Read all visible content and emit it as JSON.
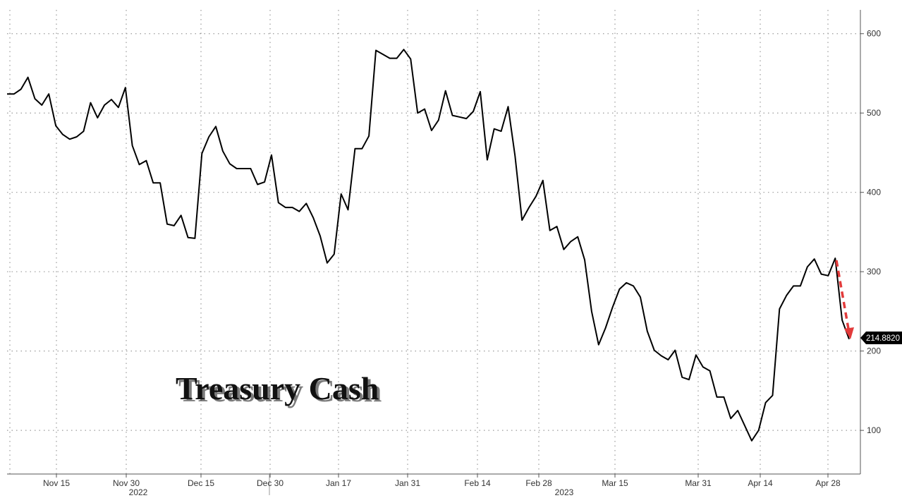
{
  "chart_data": {
    "type": "line",
    "title": "Treasury Cash",
    "xlabel": "",
    "ylabel": "",
    "grid": true,
    "y_axis_side": "right",
    "ylim": [
      45,
      630
    ],
    "yticks": [
      100,
      200,
      300,
      400,
      500,
      600
    ],
    "x_tick_labels": [
      "Nov 15",
      "Nov 30",
      "Dec 15",
      "Dec 30",
      "Jan 17",
      "Jan 31",
      "Feb 14",
      "Feb 28",
      "Mar 15",
      "Mar 31",
      "Apr 14",
      "Apr 28"
    ],
    "year_labels": [
      "2022",
      "2023"
    ],
    "last_value_label": "214.8820",
    "annotation": "red dashed downward arrow at latest point",
    "colors": {
      "line": "#000000",
      "arrow": "#e23b3b",
      "grid": "#9a9a9a",
      "label_bg": "#000000"
    },
    "series": [
      {
        "values": [
          524,
          524,
          530,
          545,
          518,
          510,
          524,
          484,
          473,
          467,
          470,
          477,
          513,
          494,
          510,
          517,
          507,
          532,
          459,
          435,
          440,
          412,
          412,
          360,
          358,
          371,
          343,
          342,
          449,
          470,
          483,
          452,
          436,
          430,
          430,
          430,
          410,
          413,
          447,
          387,
          381,
          381,
          376,
          386,
          368,
          345,
          311,
          322,
          398,
          378,
          455,
          455,
          471,
          579,
          574,
          569,
          569,
          580,
          568,
          500,
          505,
          478,
          491,
          528,
          497,
          495,
          493,
          502,
          527,
          441,
          480,
          477,
          508,
          446,
          365,
          381,
          395,
          415,
          352,
          357,
          328,
          338,
          344,
          315,
          250,
          208,
          229,
          255,
          278,
          286,
          282,
          268,
          225,
          201,
          194,
          189,
          201,
          167,
          164,
          195,
          180,
          175,
          142,
          142,
          115,
          125,
          106,
          87,
          100,
          135,
          144,
          253,
          270,
          282,
          282,
          306,
          316,
          297,
          295,
          317,
          239,
          215
        ]
      }
    ]
  }
}
